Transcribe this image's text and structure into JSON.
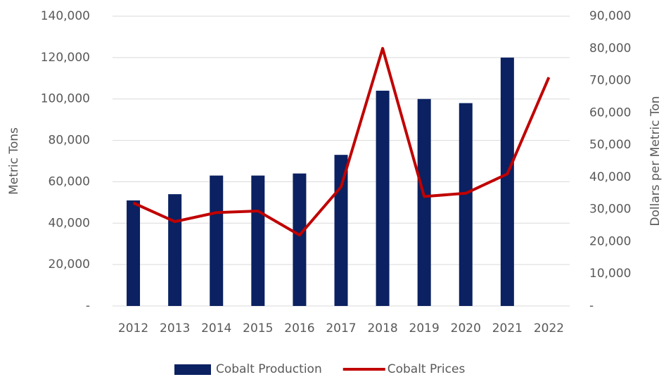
{
  "chart_data": {
    "type": "combo",
    "categories": [
      "2012",
      "2013",
      "2014",
      "2015",
      "2016",
      "2017",
      "2018",
      "2019",
      "2020",
      "2021",
      "2022"
    ],
    "series": [
      {
        "name": "Cobalt Production",
        "type": "bar",
        "color": "#0b2161",
        "values": [
          51000,
          54000,
          63000,
          63000,
          64000,
          73000,
          104000,
          100000,
          98000,
          120000,
          null
        ]
      },
      {
        "name": "Cobalt Prices",
        "type": "line",
        "axis": "y2",
        "color": "#c00000",
        "values": [
          32000,
          26200,
          29000,
          29500,
          22000,
          37000,
          80000,
          34000,
          35000,
          41000,
          71000
        ]
      }
    ],
    "ylabel": "Metric Tons",
    "y2label": "Dollars per Metric Ton",
    "ylim": [
      0,
      140000
    ],
    "yticks": [
      {
        "value": 0,
        "label": "-"
      },
      {
        "value": 20000,
        "label": "20,000"
      },
      {
        "value": 40000,
        "label": "40,000"
      },
      {
        "value": 60000,
        "label": "60,000"
      },
      {
        "value": 80000,
        "label": "80,000"
      },
      {
        "value": 100000,
        "label": "100,000"
      },
      {
        "value": 120000,
        "label": "120,000"
      },
      {
        "value": 140000,
        "label": "140,000"
      }
    ],
    "y2lim": [
      0,
      90000
    ],
    "y2ticks": [
      {
        "value": 0,
        "label": "-"
      },
      {
        "value": 10000,
        "label": "10,000"
      },
      {
        "value": 20000,
        "label": "20,000"
      },
      {
        "value": 30000,
        "label": "30,000"
      },
      {
        "value": 40000,
        "label": "40,000"
      },
      {
        "value": 50000,
        "label": "50,000"
      },
      {
        "value": 60000,
        "label": "60,000"
      },
      {
        "value": 70000,
        "label": "70,000"
      },
      {
        "value": 80000,
        "label": "80,000"
      },
      {
        "value": 90000,
        "label": "90,000"
      }
    ],
    "grid": true,
    "legend": "bottom"
  }
}
